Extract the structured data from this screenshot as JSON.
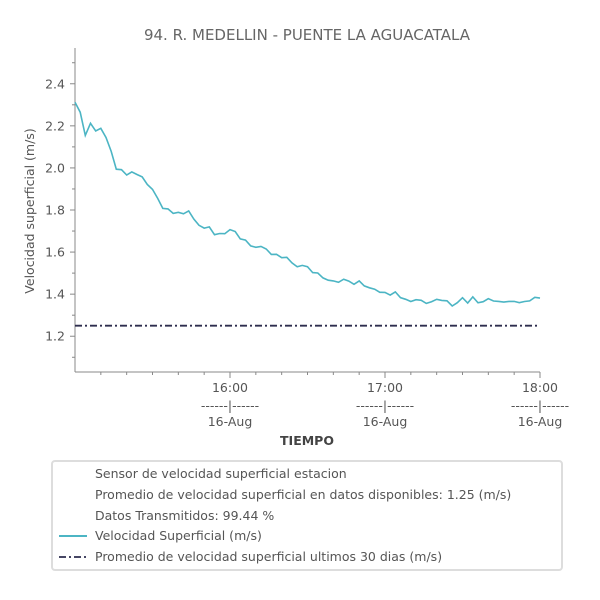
{
  "chart_data": {
    "type": "line",
    "title": "94. R. MEDELLIN - PUENTE LA AGUACATALA",
    "xlabel": "TIEMPO",
    "ylabel": "Velocidad superficial (m/s)",
    "ylim": [
      1.03,
      2.57
    ],
    "yticks": [
      "1.2",
      "1.4",
      "1.6",
      "1.8",
      "2.0",
      "2.2",
      "2.4"
    ],
    "xlim": [
      "15:00",
      "18:00"
    ],
    "xticks": [
      {
        "time": "16:00",
        "sep": "------|------",
        "date": "16-Aug"
      },
      {
        "time": "17:00",
        "sep": "------|------",
        "date": "16-Aug"
      },
      {
        "time": "18:00",
        "sep": "------|------",
        "date": "16-Aug"
      }
    ],
    "grid": false,
    "legend_position": "bottom",
    "series": [
      {
        "name": "Velocidad Superficial (m/s)",
        "color": "#4cb5c4",
        "style": "solid",
        "x_minutes": [
          0,
          2,
          4,
          6,
          8,
          10,
          12,
          14,
          16,
          18,
          20,
          22,
          24,
          26,
          28,
          30,
          32,
          34,
          36,
          38,
          40,
          42,
          44,
          46,
          48,
          50,
          52,
          54,
          56,
          58,
          60,
          62,
          64,
          66,
          68,
          70,
          72,
          74,
          76,
          78,
          80,
          82,
          84,
          86,
          88,
          90,
          92,
          94,
          96,
          98,
          100,
          102,
          104,
          106,
          108,
          110,
          112,
          114,
          116,
          118,
          120,
          122,
          124,
          126,
          128,
          130,
          132,
          134,
          136,
          138,
          140,
          142,
          144,
          146,
          148,
          150,
          152,
          154,
          156,
          158,
          160,
          162,
          164,
          166,
          168,
          170,
          172,
          174,
          176,
          178,
          180
        ],
        "values": [
          2.33,
          2.25,
          2.17,
          2.21,
          2.18,
          2.19,
          2.14,
          2.09,
          2.0,
          1.99,
          1.95,
          1.97,
          1.98,
          1.94,
          1.91,
          1.9,
          1.84,
          1.81,
          1.8,
          1.79,
          1.78,
          1.78,
          1.79,
          1.76,
          1.74,
          1.72,
          1.72,
          1.7,
          1.7,
          1.69,
          1.69,
          1.69,
          1.67,
          1.66,
          1.64,
          1.62,
          1.61,
          1.6,
          1.59,
          1.58,
          1.57,
          1.56,
          1.55,
          1.54,
          1.53,
          1.52,
          1.51,
          1.5,
          1.49,
          1.48,
          1.47,
          1.47,
          1.46,
          1.46,
          1.45,
          1.45,
          1.44,
          1.44,
          1.43,
          1.42,
          1.42,
          1.41,
          1.4,
          1.4,
          1.39,
          1.38,
          1.37,
          1.38,
          1.36,
          1.37,
          1.38,
          1.37,
          1.38,
          1.36,
          1.37,
          1.38,
          1.37,
          1.38,
          1.37,
          1.38,
          1.37,
          1.37,
          1.38,
          1.37,
          1.38,
          1.37,
          1.36,
          1.37,
          1.37,
          1.37,
          1.37
        ]
      },
      {
        "name": "Promedio de velocidad superficial ultimos 30 dias (m/s)",
        "color": "#2d2d4e",
        "style": "dashdot",
        "x_minutes": [
          0,
          180
        ],
        "values": [
          1.25,
          1.25
        ]
      }
    ]
  },
  "legend": {
    "line1": "Sensor de velocidad superficial estacion",
    "line2": "Promedio de velocidad superficial en datos disponibles: 1.25 (m/s)",
    "line3": "Datos Transmitidos: 99.44 %",
    "series1_label": "Velocidad Superficial (m/s)",
    "series2_label": "Promedio de velocidad superficial ultimos 30 dias (m/s)"
  }
}
